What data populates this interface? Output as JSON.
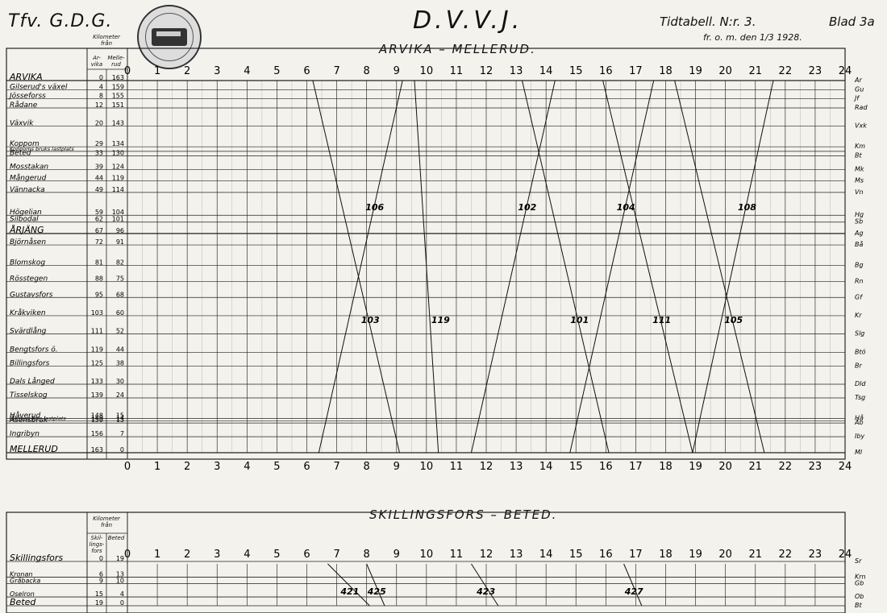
{
  "header": {
    "left": "Tfv. G.D.G.",
    "title": "D.V.V.J.",
    "timetable": "Tidtabell. N:r. 3.",
    "sheet": "Blad 3a",
    "valid_from": "fr. o. m. den 1/3 1928.",
    "seal_text": "HISTORISKT OM SVENSKA JÄRNVÄGAR"
  },
  "col_headers": {
    "km_from": "Kilometer från",
    "arvika": "Ar-vika",
    "mellerud": "Melle-rud",
    "skillingsfors": "Skil-lings-fors",
    "beted": "Beted"
  },
  "hours": [
    "0",
    "1",
    "2",
    "3",
    "4",
    "5",
    "6",
    "7",
    "8",
    "9",
    "10",
    "11",
    "12",
    "13",
    "14",
    "15",
    "16",
    "17",
    "18",
    "19",
    "20",
    "21",
    "22",
    "23",
    "24"
  ],
  "section1": {
    "title": "ARVIKA – MELLERUD.",
    "stations": [
      {
        "name": "ARVIKA",
        "a": "0",
        "b": "163",
        "abbr": "Ar"
      },
      {
        "name": "Gilserud's växel",
        "a": "4",
        "b": "159",
        "abbr": "Gu"
      },
      {
        "name": "Jösseforss",
        "a": "8",
        "b": "155",
        "abbr": "Jf"
      },
      {
        "name": "Rådane",
        "a": "12",
        "b": "151",
        "abbr": "Rad"
      },
      {
        "name": "Växvik",
        "a": "20",
        "b": "143",
        "abbr": "Vxk"
      },
      {
        "name": "Koppom",
        "a": "29",
        "b": "134",
        "abbr": "Km"
      },
      {
        "name": "Koppoms bruks lastplats",
        "a": "",
        "b": "",
        "abbr": ""
      },
      {
        "name": "Beted",
        "a": "33",
        "b": "130",
        "abbr": "Bt"
      },
      {
        "name": "Mosstakan",
        "a": "39",
        "b": "124",
        "abbr": "Mk"
      },
      {
        "name": "Mångerud",
        "a": "44",
        "b": "119",
        "abbr": "Ms"
      },
      {
        "name": "Vännacka",
        "a": "49",
        "b": "114",
        "abbr": "Vn"
      },
      {
        "name": "Högelian",
        "a": "59",
        "b": "104",
        "abbr": "Hg"
      },
      {
        "name": "Silbodal",
        "a": "62",
        "b": "101",
        "abbr": "Sb"
      },
      {
        "name": "ÅRJÄNG",
        "a": "67",
        "b": "96",
        "abbr": "Ag"
      },
      {
        "name": "Björnåsen",
        "a": "72",
        "b": "91",
        "abbr": "Bå"
      },
      {
        "name": "Blomskog",
        "a": "81",
        "b": "82",
        "abbr": "Bg"
      },
      {
        "name": "Rösstegen",
        "a": "88",
        "b": "75",
        "abbr": "Rn"
      },
      {
        "name": "Gustavsfors",
        "a": "95",
        "b": "68",
        "abbr": "Gf"
      },
      {
        "name": "Kråkviken",
        "a": "103",
        "b": "60",
        "abbr": "Kr"
      },
      {
        "name": "Svärdlång",
        "a": "111",
        "b": "52",
        "abbr": "Slg"
      },
      {
        "name": "Bengtsfors ö.",
        "a": "119",
        "b": "44",
        "abbr": "Btö"
      },
      {
        "name": "Billingsfors",
        "a": "125",
        "b": "38",
        "abbr": "Br"
      },
      {
        "name": "Dals Långed",
        "a": "133",
        "b": "30",
        "abbr": "Dld"
      },
      {
        "name": "Tisselskog",
        "a": "139",
        "b": "24",
        "abbr": "Tsg"
      },
      {
        "name": "Håverud",
        "a": "148",
        "b": "15",
        "abbr": "Hå"
      },
      {
        "name": "Hafreströms lastplats",
        "a": "149",
        "b": "14",
        "abbr": ""
      },
      {
        "name": "Åsensbruk",
        "a": "150",
        "b": "13",
        "abbr": "Åb"
      },
      {
        "name": "Ingribyn",
        "a": "156",
        "b": "7",
        "abbr": "Iby"
      },
      {
        "name": "MELLERUD",
        "a": "163",
        "b": "0",
        "abbr": "Ml"
      }
    ]
  },
  "section2": {
    "title": "SKILLINGSFORS – BETED.",
    "stations": [
      {
        "name": "Skillingsfors",
        "a": "0",
        "b": "19",
        "abbr": "Sr"
      },
      {
        "name": "Kronan",
        "a": "6",
        "b": "13",
        "abbr": "Krn"
      },
      {
        "name": "Gråbacka",
        "a": "9",
        "b": "10",
        "abbr": "Gb"
      },
      {
        "name": "Oselron",
        "a": "15",
        "b": "4",
        "abbr": "Ob"
      },
      {
        "name": "Beted",
        "a": "19",
        "b": "0",
        "abbr": "Bt"
      }
    ]
  },
  "trains": [
    {
      "no": "106",
      "dir": "up",
      "s1": 6.4,
      "s2": 9.2
    },
    {
      "no": "102",
      "dir": "up",
      "s1": 11.5,
      "s2": 14.3
    },
    {
      "no": "104",
      "dir": "up",
      "s1": 14.8,
      "s2": 17.6
    },
    {
      "no": "108",
      "dir": "up",
      "s1": 18.9,
      "s2": 21.6
    },
    {
      "no": "103",
      "dir": "down",
      "s1": 6.2,
      "s2": 9.1
    },
    {
      "no": "119",
      "dir": "down",
      "s1": 9.6,
      "s2": 10.4
    },
    {
      "no": "101",
      "dir": "down",
      "s1": 13.2,
      "s2": 16.1
    },
    {
      "no": "111",
      "dir": "down",
      "s1": 15.9,
      "s2": 18.9
    },
    {
      "no": "105",
      "dir": "down",
      "s1": 18.3,
      "s2": 21.3
    }
  ],
  "trains2": [
    {
      "no": "421",
      "s1": 6.7,
      "s2": 8.1
    },
    {
      "no": "423",
      "s1": 11.5,
      "s2": 12.4
    },
    {
      "no": "427",
      "s1": 16.6,
      "s2": 17.2
    },
    {
      "no": "425",
      "s1": 8.0,
      "s2": 8.6
    }
  ]
}
